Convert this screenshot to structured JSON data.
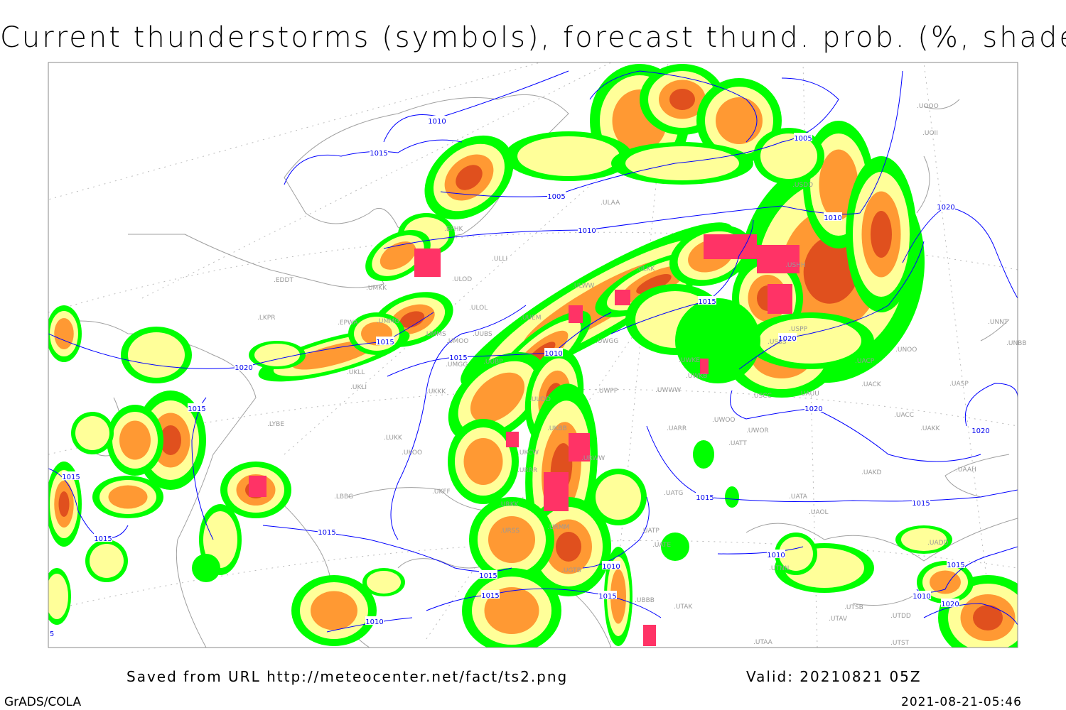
{
  "title": "Current thunderstorms (symbols), forecast thund. prob. (%, shaded)",
  "footer": {
    "source": "Saved from URL http://meteocenter.net/fact/ts2.png",
    "valid": "Valid: 20210821 05Z",
    "software": "GrADS/COLA",
    "timestamp": "2021-08-21-05:46"
  },
  "colors": {
    "prob_low": "#00ff00",
    "prob_mid": "#ffff99",
    "prob_high": "#ff9933",
    "prob_very_high": "#e0501e",
    "thunderstorm_symbol": "#ff3366",
    "isobar": "#0000ff",
    "coastline": "#a0a0a0"
  },
  "stations": [
    "UOOO",
    "UOII",
    "ULAA",
    "USDD",
    "EFHK",
    "ULLI",
    "ULOD",
    "ULWW",
    "ULKK",
    "EDDT",
    "UMKK",
    "ULOL",
    "UUEM",
    "EPWA",
    "UMMS",
    "UMOO",
    "UUBS",
    "UKLL",
    "UKLI",
    "UKKK",
    "UMGG",
    "UUBP",
    "UUDD",
    "UWGG",
    "UWKE",
    "UWKB",
    "UWWW",
    "UWPP",
    "USSS",
    "UACP",
    "UNOO",
    "UACK",
    "UASP",
    "UAUU",
    "USCC",
    "UWOO",
    "UWOR",
    "UATT",
    "UACC",
    "UAKK",
    "UARR",
    "LYBE",
    "LUKK",
    "UKOO",
    "UKFF",
    "UKCW",
    "URRR",
    "URWW",
    "LBBG",
    "URKK",
    "UATG",
    "UATA",
    "UAOL",
    "UAKD",
    "UAAH",
    "UATE",
    "UATP",
    "URMM",
    "URSS",
    "UTNN",
    "UGTB",
    "UTAK",
    "UTSB",
    "UTAV",
    "UTDD",
    "UTST",
    "UTAA",
    "UBBB",
    "UNNT",
    "UNBB",
    "UADD",
    "USHH",
    "USPP",
    "LKPR",
    "UMMG",
    "UKBB"
  ],
  "isobar_labels": [
    "1010",
    "1015",
    "1005",
    "1010",
    "1005",
    "1010",
    "1020",
    "1015",
    "1015",
    "1010",
    "1020",
    "1015",
    "1020",
    "1020",
    "1020",
    "1015",
    "1015",
    "1015",
    "1015",
    "1015",
    "1015",
    "1010",
    "1010",
    "1015",
    "1015",
    "1015",
    "1010",
    "1015",
    "1010",
    "1020",
    "5"
  ]
}
